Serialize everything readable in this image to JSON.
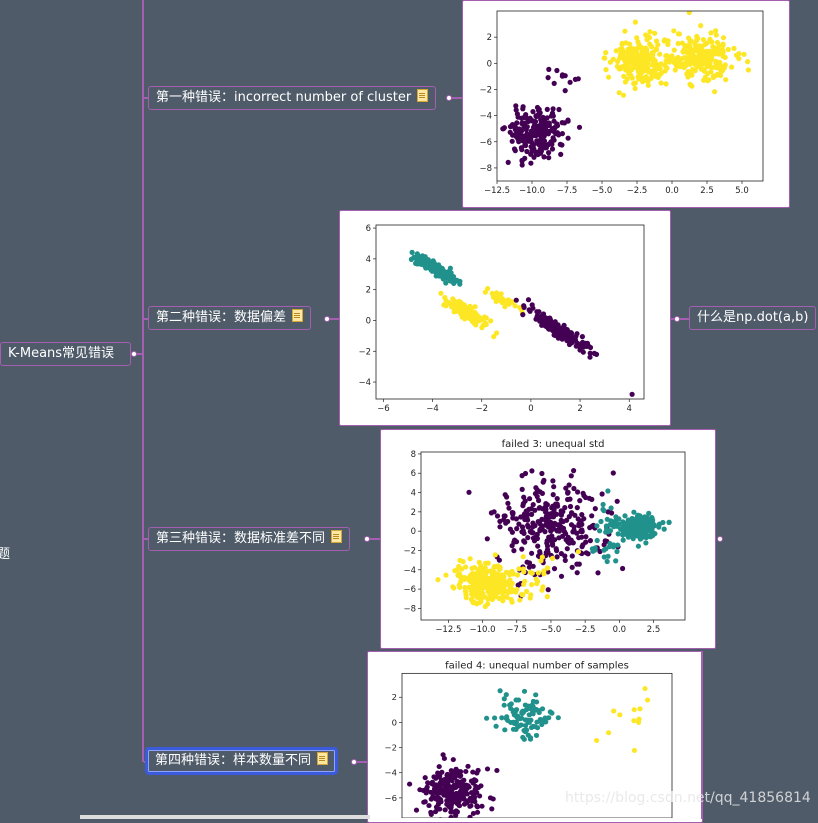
{
  "root": {
    "label": "K-Means常见错误"
  },
  "side_label": "题",
  "watermark": "https://blog.csdn.net/qq_41856814",
  "branches": [
    {
      "label": "第一种错误：incorrect number of cluster"
    },
    {
      "label": "第二种错误：数据偏差"
    },
    {
      "label": "第三种错误：数据标准差不同"
    },
    {
      "label": "第四种错误：样本数量不同"
    }
  ],
  "child_node": {
    "label": "什么是np.dot(a,b)"
  },
  "colors": {
    "purple": "#440154",
    "teal": "#21918c",
    "yellow": "#fde725",
    "line": "#a55fb1",
    "bg": "#4f5b69"
  },
  "chart_data": [
    {
      "type": "scatter",
      "title": "",
      "xlim": [
        -12.5,
        6.5
      ],
      "ylim": [
        -9,
        4
      ],
      "xticks": [
        -12.5,
        -10.0,
        -7.5,
        -5.0,
        -2.5,
        0.0,
        2.5,
        5.0
      ],
      "xtick_labels": [
        "−12.5",
        "−10.0",
        "−7.5",
        "−5.0",
        "−2.5",
        "0.0",
        "2.5",
        "5.0"
      ],
      "yticks": [
        -8,
        -6,
        -4,
        -2,
        0,
        2
      ],
      "ytick_labels": [
        "−8",
        "−6",
        "−4",
        "−2",
        "0",
        "2"
      ],
      "clusters": [
        {
          "color": "purple",
          "cx": -9.8,
          "cy": -5.3,
          "sx": 1.0,
          "sy": 1.0,
          "n": 220,
          "seed": 11
        },
        {
          "color": "purple",
          "cx": -7.6,
          "cy": -0.9,
          "sx": 0.5,
          "sy": 0.45,
          "n": 10,
          "seed": 12
        },
        {
          "color": "yellow",
          "cx": -2.3,
          "cy": 0.2,
          "sx": 1.0,
          "sy": 0.9,
          "n": 230,
          "seed": 13
        },
        {
          "color": "yellow",
          "cx": 2.1,
          "cy": 0.4,
          "sx": 1.05,
          "sy": 0.95,
          "n": 230,
          "seed": 14
        }
      ]
    },
    {
      "type": "scatter",
      "title": "",
      "xlim": [
        -6.3,
        4.6
      ],
      "ylim": [
        -5.1,
        6.2
      ],
      "xticks": [
        -6,
        -4,
        -2,
        0,
        2,
        4
      ],
      "xtick_labels": [
        "−6",
        "−4",
        "−2",
        "0",
        "2",
        "4"
      ],
      "yticks": [
        -4,
        -2,
        0,
        2,
        4,
        6
      ],
      "ytick_labels": [
        "−4",
        "−2",
        "0",
        "2",
        "4",
        "6"
      ],
      "clusters": [
        {
          "color": "teal",
          "cx": -3.8,
          "cy": 3.3,
          "sx": 0.6,
          "sy": 0.15,
          "rot": -0.83,
          "n": 140,
          "seed": 21
        },
        {
          "color": "yellow",
          "cx": -2.6,
          "cy": 0.5,
          "sx": 0.6,
          "sy": 0.15,
          "rot": -0.83,
          "n": 140,
          "seed": 22
        },
        {
          "color": "yellow",
          "cx": -1.1,
          "cy": 1.3,
          "sx": 0.35,
          "sy": 0.12,
          "rot": -0.83,
          "n": 40,
          "seed": 25
        },
        {
          "color": "purple",
          "cx": 1.1,
          "cy": -0.6,
          "sx": 0.85,
          "sy": 0.16,
          "rot": -0.83,
          "n": 200,
          "seed": 23
        },
        {
          "color": "purple",
          "cx": 4.1,
          "cy": -4.8,
          "sx": 0.02,
          "sy": 0.02,
          "n": 1,
          "seed": 24
        }
      ]
    },
    {
      "type": "scatter",
      "title": "failed 3: unequal std",
      "xlim": [
        -14.5,
        4.8
      ],
      "ylim": [
        -9.2,
        8.2
      ],
      "xticks": [
        -12.5,
        -10.0,
        -7.5,
        -5.0,
        -2.5,
        0.0,
        2.5
      ],
      "xtick_labels": [
        "−12.5",
        "−10.0",
        "−7.5",
        "−5.0",
        "−2.5",
        "0.0",
        "2.5"
      ],
      "yticks": [
        -8,
        -6,
        -4,
        -2,
        0,
        2,
        4,
        6,
        8
      ],
      "ytick_labels": [
        "−8",
        "−6",
        "−4",
        "−2",
        "0",
        "2",
        "4",
        "6",
        "8"
      ],
      "clusters": [
        {
          "color": "purple",
          "cx": -5.0,
          "cy": 0.5,
          "sx": 2.0,
          "sy": 2.4,
          "n": 300,
          "seed": 31
        },
        {
          "color": "teal",
          "cx": 1.6,
          "cy": 0.3,
          "sx": 0.7,
          "sy": 0.6,
          "n": 220,
          "seed": 32
        },
        {
          "color": "teal",
          "cx": -0.8,
          "cy": 0.0,
          "sx": 0.6,
          "sy": 1.8,
          "n": 50,
          "seed": 35
        },
        {
          "color": "yellow",
          "cx": -9.6,
          "cy": -5.4,
          "sx": 1.2,
          "sy": 1.0,
          "n": 260,
          "seed": 33
        },
        {
          "color": "yellow",
          "cx": -6.5,
          "cy": -4.5,
          "sx": 2.2,
          "sy": 1.4,
          "n": 25,
          "seed": 34
        }
      ]
    },
    {
      "type": "scatter",
      "title": "failed 4: unequal number of samples",
      "xlim": [
        -13.2,
        4.8
      ],
      "ylim": [
        -7.6,
        3.9
      ],
      "xticks": [],
      "xtick_labels": [],
      "yticks": [
        -6,
        -4,
        -2,
        0,
        2
      ],
      "ytick_labels": [
        "−6",
        "−4",
        "−2",
        "0",
        "2"
      ],
      "clusters": [
        {
          "color": "purple",
          "cx": -9.8,
          "cy": -5.6,
          "sx": 1.0,
          "sy": 1.0,
          "n": 230,
          "seed": 41
        },
        {
          "color": "teal",
          "cx": -5.0,
          "cy": 0.3,
          "sx": 0.9,
          "sy": 0.8,
          "n": 95,
          "seed": 42
        },
        {
          "color": "yellow",
          "cx": 2.1,
          "cy": 0.3,
          "sx": 0.8,
          "sy": 1.2,
          "n": 12,
          "seed": 43
        }
      ]
    }
  ]
}
